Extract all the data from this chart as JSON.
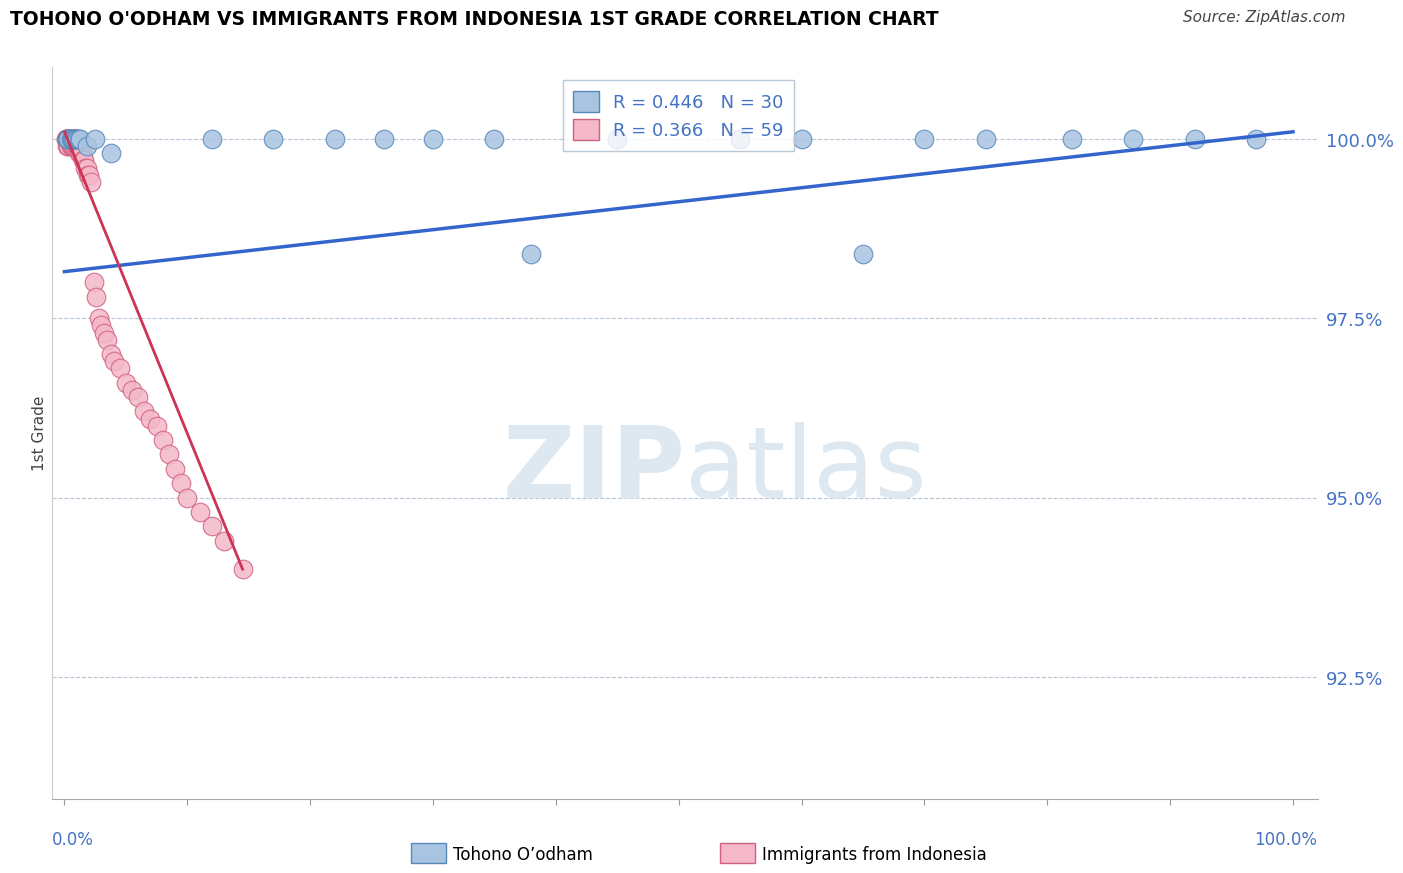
{
  "title": "TOHONO O'ODHAM VS IMMIGRANTS FROM INDONESIA 1ST GRADE CORRELATION CHART",
  "source": "Source: ZipAtlas.com",
  "ylabel_label": "1st Grade",
  "ytick_labels": [
    "100.0%",
    "97.5%",
    "95.0%",
    "92.5%"
  ],
  "ytick_values": [
    1.0,
    0.975,
    0.95,
    0.925
  ],
  "legend_blue_label": "Tohono O’odham",
  "legend_pink_label": "Immigrants from Indonesia",
  "R_blue": 0.446,
  "N_blue": 30,
  "R_pink": 0.366,
  "N_pink": 59,
  "blue_color": "#a8c4e0",
  "blue_edge_color": "#5588bb",
  "pink_color": "#f4b8c8",
  "pink_edge_color": "#d06080",
  "trendline_blue_color": "#3366cc",
  "trendline_pink_color": "#cc3355",
  "watermark_color": "#dde8f0",
  "blue_scatter_x": [
    0.002,
    0.003,
    0.005,
    0.006,
    0.007,
    0.008,
    0.009,
    0.01,
    0.012,
    0.013,
    0.018,
    0.025,
    0.038,
    0.12,
    0.17,
    0.22,
    0.26,
    0.3,
    0.35,
    0.38,
    0.45,
    0.55,
    0.6,
    0.65,
    0.7,
    0.75,
    0.82,
    0.87,
    0.92,
    0.97
  ],
  "blue_scatter_y": [
    1.0,
    1.0,
    1.0,
    1.0,
    1.0,
    1.0,
    1.0,
    1.0,
    1.0,
    1.0,
    0.999,
    1.0,
    0.998,
    1.0,
    1.0,
    1.0,
    1.0,
    1.0,
    1.0,
    0.984,
    1.0,
    1.0,
    1.0,
    0.984,
    1.0,
    1.0,
    1.0,
    1.0,
    1.0,
    1.0
  ],
  "pink_scatter_x": [
    0.001,
    0.001,
    0.002,
    0.002,
    0.002,
    0.003,
    0.003,
    0.003,
    0.004,
    0.004,
    0.005,
    0.005,
    0.005,
    0.006,
    0.006,
    0.006,
    0.007,
    0.007,
    0.008,
    0.008,
    0.009,
    0.009,
    0.01,
    0.01,
    0.011,
    0.012,
    0.013,
    0.014,
    0.015,
    0.016,
    0.017,
    0.018,
    0.019,
    0.02,
    0.022,
    0.024,
    0.026,
    0.028,
    0.03,
    0.032,
    0.035,
    0.038,
    0.04,
    0.045,
    0.05,
    0.055,
    0.06,
    0.065,
    0.07,
    0.075,
    0.08,
    0.085,
    0.09,
    0.095,
    0.1,
    0.11,
    0.12,
    0.13,
    0.145
  ],
  "pink_scatter_y": [
    1.0,
    1.0,
    1.0,
    1.0,
    0.999,
    1.0,
    1.0,
    0.999,
    1.0,
    1.0,
    1.0,
    1.0,
    0.999,
    1.0,
    1.0,
    0.999,
    1.0,
    0.999,
    1.0,
    0.999,
    1.0,
    0.999,
    1.0,
    0.999,
    0.999,
    0.998,
    0.998,
    0.998,
    0.997,
    0.997,
    0.996,
    0.996,
    0.995,
    0.995,
    0.994,
    0.98,
    0.978,
    0.975,
    0.974,
    0.973,
    0.972,
    0.97,
    0.969,
    0.968,
    0.966,
    0.965,
    0.964,
    0.962,
    0.961,
    0.96,
    0.958,
    0.956,
    0.954,
    0.952,
    0.95,
    0.948,
    0.946,
    0.944,
    0.94
  ],
  "blue_line_x": [
    0.0,
    1.0
  ],
  "blue_line_y": [
    0.9815,
    1.001
  ],
  "pink_line_x": [
    0.0,
    0.145
  ],
  "pink_line_y": [
    1.001,
    0.94
  ],
  "xlim": [
    -0.01,
    1.02
  ],
  "ylim": [
    0.908,
    1.01
  ],
  "xgrid_positions": [
    0.0,
    0.1,
    0.2,
    0.3,
    0.4,
    0.5,
    0.6,
    0.7,
    0.8,
    0.9,
    1.0
  ]
}
